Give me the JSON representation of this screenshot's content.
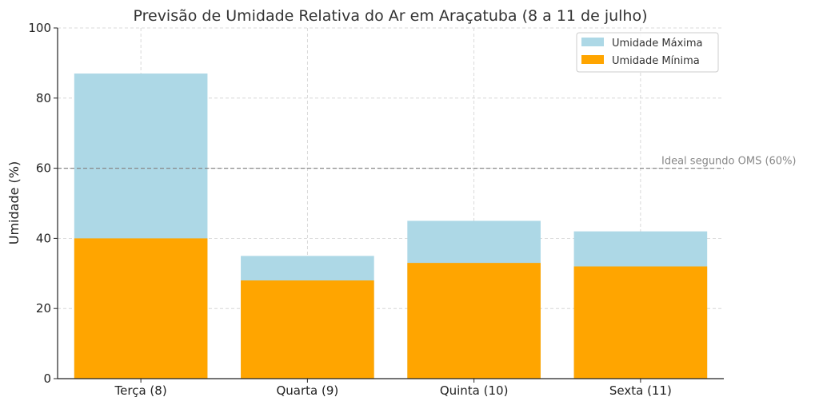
{
  "chart_data": {
    "type": "bar",
    "stacked": "overlay",
    "title": "Previsão de Umidade Relativa do Ar em Araçatuba (8 a 11 de julho)",
    "xlabel": "",
    "ylabel": "Umidade (%)",
    "ylim": [
      0,
      100
    ],
    "yticks": [
      "0",
      "20",
      "40",
      "60",
      "80",
      "100"
    ],
    "grid": true,
    "legend_position": "top-right",
    "categories": [
      "Terça (8)",
      "Quarta (9)",
      "Quinta (10)",
      "Sexta (11)"
    ],
    "series": [
      {
        "name": "Umidade Máxima",
        "color": "#add8e6",
        "values": [
          87,
          35,
          45,
          42
        ]
      },
      {
        "name": "Umidade Mínima",
        "color": "#ffa500",
        "values": [
          40,
          28,
          33,
          32
        ]
      }
    ],
    "reference_line": {
      "label": "Ideal segundo OMS (60%)",
      "value": 60,
      "color": "#888888"
    }
  }
}
